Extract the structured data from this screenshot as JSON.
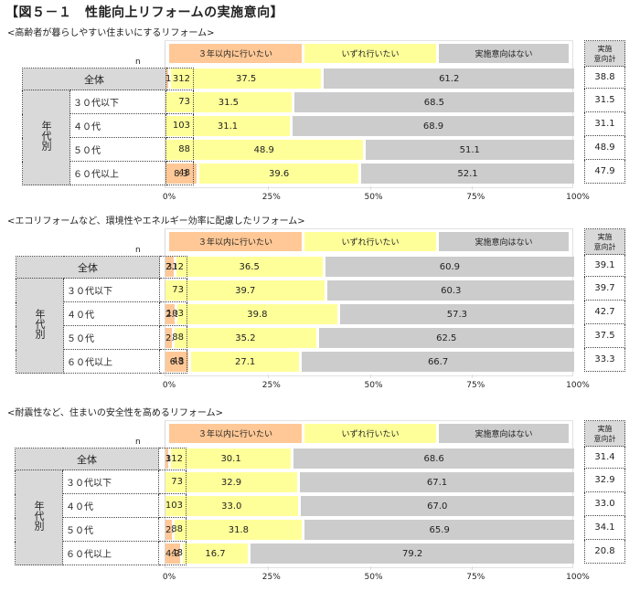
{
  "title": "【図５－１　性能向上リフォームの実施意向】",
  "legend": [
    "３年以内に行いたい",
    "いずれ行いたい",
    "実施意向はない"
  ],
  "colors": {
    "within3years": "#ffc896",
    "someday": "#ffff99",
    "no_intent": "#cccccc"
  },
  "n_label": "n",
  "total_header_line1": "実施",
  "total_header_line2": "意向計",
  "group_label": "年代別",
  "axis_ticks": [
    "0%",
    "25%",
    "50%",
    "75%",
    "100%"
  ],
  "rows": [
    "全体",
    "３０代以下",
    "４０代",
    "５０代",
    "６０代以上"
  ],
  "n_values": [
    "312",
    "73",
    "103",
    "88",
    "48"
  ],
  "panels": [
    {
      "subtitle": "<高齢者が暮らしやすい住まいにするリフォーム>",
      "data": [
        {
          "a": "1.3",
          "b": "37.5",
          "c": "61.2",
          "t": "38.8"
        },
        {
          "a": "",
          "b": "31.5",
          "c": "68.5",
          "t": "31.5"
        },
        {
          "a": "",
          "b": "31.1",
          "c": "68.9",
          "t": "31.1"
        },
        {
          "a": "",
          "b": "48.9",
          "c": "51.1",
          "t": "48.9"
        },
        {
          "a": "8.3",
          "b": "39.6",
          "c": "52.1",
          "t": "47.9"
        }
      ]
    },
    {
      "subtitle": "<エコリフォームなど、環境性やエネルギー効率に配慮したリフォーム>",
      "data": [
        {
          "a": "2.6",
          "b": "36.5",
          "c": "60.9",
          "t": "39.1"
        },
        {
          "a": "",
          "b": "39.7",
          "c": "60.3",
          "t": "39.7"
        },
        {
          "a": "2.9",
          "b": "39.8",
          "c": "57.3",
          "t": "42.7"
        },
        {
          "a": "2.3",
          "b": "35.2",
          "c": "62.5",
          "t": "37.5"
        },
        {
          "a": "6.3",
          "b": "27.1",
          "c": "66.7",
          "t": "33.3"
        }
      ]
    },
    {
      "subtitle": "<耐震性など、住まいの安全性を高めるリフォーム>",
      "data": [
        {
          "a": "1.3",
          "b": "30.1",
          "c": "68.6",
          "t": "31.4"
        },
        {
          "a": "",
          "b": "32.9",
          "c": "67.1",
          "t": "32.9"
        },
        {
          "a": "",
          "b": "33.0",
          "c": "67.0",
          "t": "33.0"
        },
        {
          "a": "2.3",
          "b": "31.8",
          "c": "65.9",
          "t": "34.1"
        },
        {
          "a": "4.2",
          "b": "16.7",
          "c": "79.2",
          "t": "20.8"
        }
      ]
    }
  ],
  "chart_data": [
    {
      "type": "bar",
      "stacked": true,
      "orientation": "horizontal",
      "title": "高齢者が暮らしやすい住まいにするリフォーム",
      "categories": [
        "全体",
        "３０代以下",
        "４０代",
        "５０代",
        "６０代以上"
      ],
      "n": [
        312,
        73,
        103,
        88,
        48
      ],
      "series": [
        {
          "name": "３年以内に行いたい",
          "values": [
            1.3,
            0,
            0,
            0,
            8.3
          ]
        },
        {
          "name": "いずれ行いたい",
          "values": [
            37.5,
            31.5,
            31.1,
            48.9,
            39.6
          ]
        },
        {
          "name": "実施意向はない",
          "values": [
            61.2,
            68.5,
            68.9,
            51.1,
            52.1
          ]
        }
      ],
      "total_intent": [
        38.8,
        31.5,
        31.1,
        48.9,
        47.9
      ],
      "xlim": [
        0,
        100
      ],
      "xticks": [
        "0%",
        "25%",
        "50%",
        "75%",
        "100%"
      ]
    },
    {
      "type": "bar",
      "stacked": true,
      "orientation": "horizontal",
      "title": "エコリフォームなど、環境性やエネルギー効率に配慮したリフォーム",
      "categories": [
        "全体",
        "３０代以下",
        "４０代",
        "５０代",
        "６０代以上"
      ],
      "n": [
        312,
        73,
        103,
        88,
        48
      ],
      "series": [
        {
          "name": "３年以内に行いたい",
          "values": [
            2.6,
            0,
            2.9,
            2.3,
            6.3
          ]
        },
        {
          "name": "いずれ行いたい",
          "values": [
            36.5,
            39.7,
            39.8,
            35.2,
            27.1
          ]
        },
        {
          "name": "実施意向はない",
          "values": [
            60.9,
            60.3,
            57.3,
            62.5,
            66.7
          ]
        }
      ],
      "total_intent": [
        39.1,
        39.7,
        42.7,
        37.5,
        33.3
      ],
      "xlim": [
        0,
        100
      ],
      "xticks": [
        "0%",
        "25%",
        "50%",
        "75%",
        "100%"
      ]
    },
    {
      "type": "bar",
      "stacked": true,
      "orientation": "horizontal",
      "title": "耐震性など、住まいの安全性を高めるリフォーム",
      "categories": [
        "全体",
        "３０代以下",
        "４０代",
        "５０代",
        "６０代以上"
      ],
      "n": [
        312,
        73,
        103,
        88,
        48
      ],
      "series": [
        {
          "name": "３年以内に行いたい",
          "values": [
            1.3,
            0,
            0,
            2.3,
            4.2
          ]
        },
        {
          "name": "いずれ行いたい",
          "values": [
            30.1,
            32.9,
            33.0,
            31.8,
            16.7
          ]
        },
        {
          "name": "実施意向はない",
          "values": [
            68.6,
            67.1,
            67.0,
            65.9,
            79.2
          ]
        }
      ],
      "total_intent": [
        31.4,
        32.9,
        33.0,
        34.1,
        20.8
      ],
      "xlim": [
        0,
        100
      ],
      "xticks": [
        "0%",
        "25%",
        "50%",
        "75%",
        "100%"
      ]
    }
  ]
}
